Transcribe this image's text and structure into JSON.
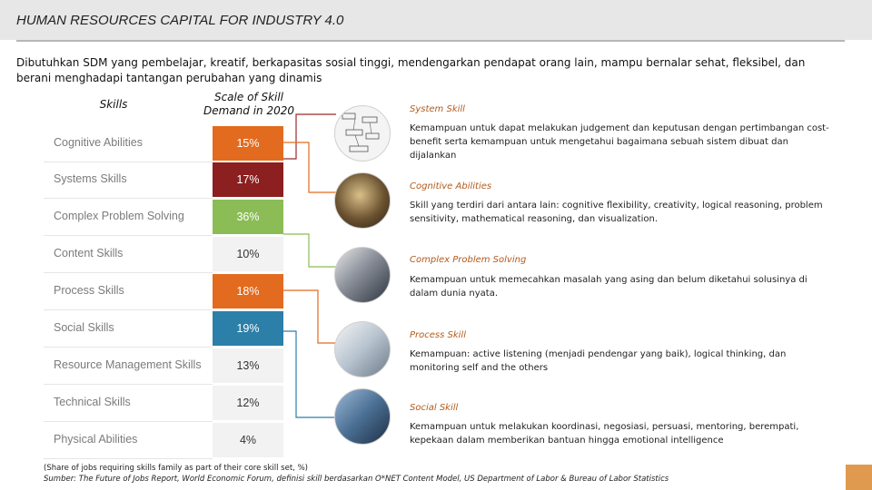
{
  "header": {
    "title": "HUMAN RESOURCES CAPITAL FOR INDUSTRY 4.0"
  },
  "intro": "Dibutuhkan SDM yang pembelajar, kreatif, berkapasitas sosial tinggi, mendengarkan pendapat orang lain, mampu bernalar sehat, fleksibel, dan berani menghadapi tantangan perubahan yang dinamis",
  "columns": {
    "skills": "Skills",
    "scale": "Scale of Skill Demand in 2020"
  },
  "skills": [
    {
      "label": "Cognitive Abilities",
      "value": "15%",
      "color": "#e26b1f"
    },
    {
      "label": "Systems Skills",
      "value": "17%",
      "color": "#8c1f1f"
    },
    {
      "label": "Complex Problem Solving",
      "value": "36%",
      "color": "#8bbc56"
    },
    {
      "label": "Content Skills",
      "value": "10%",
      "color": "#f2f2f2"
    },
    {
      "label": "Process Skills",
      "value": "18%",
      "color": "#e26b1f"
    },
    {
      "label": "Social Skills",
      "value": "19%",
      "color": "#2b7fa8"
    },
    {
      "label": "Resource Management Skills",
      "value": "13%",
      "color": "#f2f2f2"
    },
    {
      "label": "Technical Skills",
      "value": "12%",
      "color": "#f2f2f2"
    },
    {
      "label": "Physical Abilities",
      "value": "4%",
      "color": "#f2f2f2"
    }
  ],
  "descriptions": [
    {
      "title": "System Skill",
      "text": "Kemampuan untuk dapat melakukan judgement dan keputusan dengan pertimbangan cost-benefit serta kemampuan untuk mengetahui bagaimana sebuah sistem dibuat dan dijalankan",
      "icon": "system-diagram-photo"
    },
    {
      "title": "Cognitive Abilities",
      "text": "Skill yang terdiri dari antara lain: cognitive flexibility, creativity, logical reasoning, problem sensitivity, mathematical reasoning, dan visualization.",
      "icon": "thinking-person-photo"
    },
    {
      "title": "Complex Problem Solving",
      "text": "Kemampuan untuk memecahkan masalah yang asing dan belum diketahui solusinya di dalam dunia nyata.",
      "icon": "business-team-photo"
    },
    {
      "title": "Process Skill",
      "text": "Kemampuan: active listening (menjadi pendengar yang baik), logical thinking, dan monitoring self and the others",
      "icon": "meeting-presentation-photo"
    },
    {
      "title": "Social Skill",
      "text": "Kemampuan untuk melakukan koordinasi, negosiasi, persuasi, mentoring, berempati, kepekaan dalam memberikan bantuan hingga emotional intelligence",
      "icon": "group-people-photo"
    }
  ],
  "footnote": {
    "line1": "(Share of jobs requiring skills family as part of their core skill set, %)",
    "line2": "Sumber: The Future of Jobs Report, World Economic Forum, definisi skill berdasarkan O*NET Content Model, US Department of Labor & Bureau of Labor Statistics"
  }
}
